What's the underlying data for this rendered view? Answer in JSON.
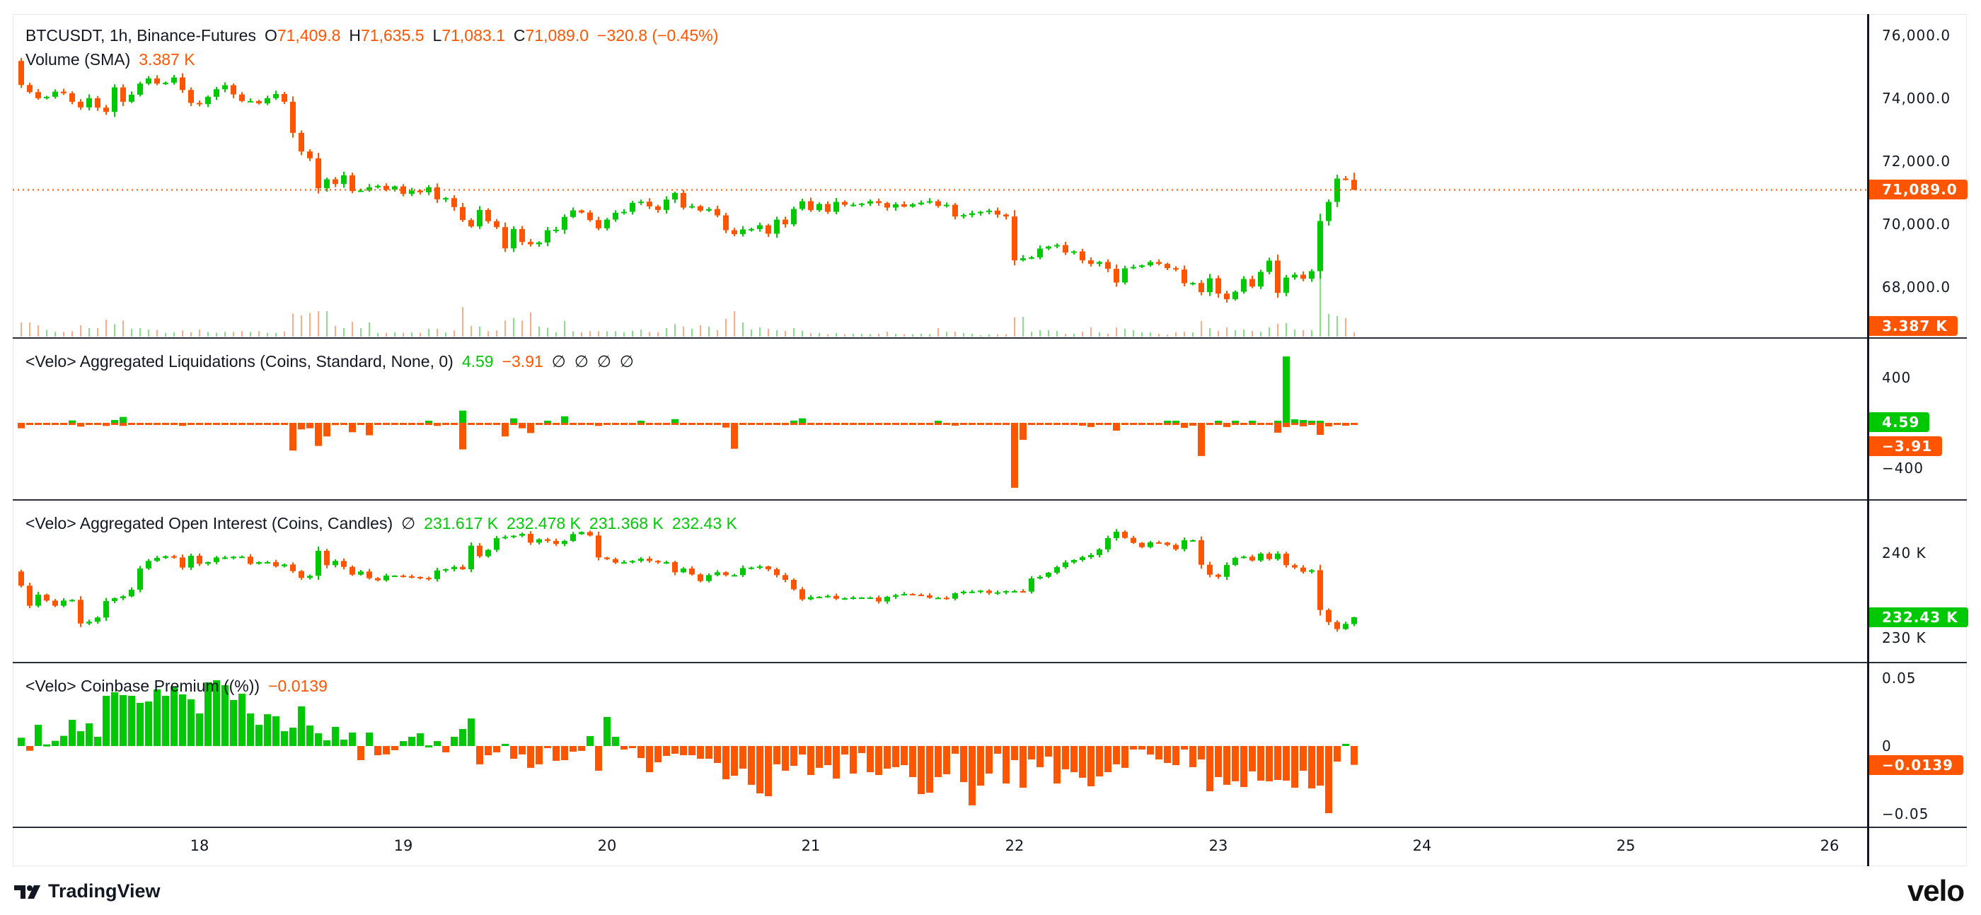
{
  "header": {
    "symbol": "BTCUSDT, 1h, Binance-Futures",
    "o_label": "O",
    "o": "71,409.8",
    "h_label": "H",
    "h": "71,635.5",
    "l_label": "L",
    "l": "71,083.1",
    "c_label": "C",
    "c": "71,089.0",
    "change": "−320.8 (−0.45%)"
  },
  "volume_legend": {
    "name": "Volume (SMA)",
    "value": "3.387 K"
  },
  "liq_legend": {
    "name": "<Velo> Aggregated Liquidations (Coins, Standard, None, 0)",
    "long": "4.59",
    "short": "−3.91",
    "extra": [
      "∅",
      "∅",
      "∅",
      "∅"
    ]
  },
  "oi_legend": {
    "name": "<Velo> Aggregated Open Interest (Coins, Candles)",
    "na": "∅",
    "values": [
      "231.617 K",
      "232.478 K",
      "231.368 K",
      "232.43 K"
    ]
  },
  "premium_legend": {
    "name": "<Velo> Coinbase Premium ((%))",
    "value": "−0.0139"
  },
  "last_labels": {
    "price": "71,089.0",
    "volume": "3.387 K",
    "liq_long": "4.59",
    "liq_short": "−3.91",
    "oi": "232.43 K",
    "premium": "−0.0139"
  },
  "time_labels": [
    "18",
    "19",
    "20",
    "21",
    "22",
    "23",
    "24",
    "25",
    "26"
  ],
  "branding": {
    "tradingview": "TradingView",
    "velo": "velo"
  },
  "colors": {
    "up": "#00c805",
    "down": "#ff5500",
    "volume_up": "#86e08a",
    "volume_down": "#ffab85",
    "axis_text": "#131722",
    "separator": "#2a2e39"
  },
  "chart_data": [
    {
      "type": "candlestick",
      "interval": "1h",
      "ylim": [
        67000,
        76500
      ],
      "yticks": [
        {
          "value": 76000,
          "label": "76,000.0"
        },
        {
          "value": 74000,
          "label": "74,000.0"
        },
        {
          "value": 72000,
          "label": "72,000.0"
        },
        {
          "value": 70000,
          "label": "70,000.0"
        },
        {
          "value": 68000,
          "label": "68,000.0"
        }
      ],
      "first_open": 75186,
      "last_candle": {
        "open": 71409.8,
        "high": 71635.5,
        "low": 71083.1,
        "close": 71089.0
      },
      "last_price_line": 71089.0,
      "close": [
        74422,
        74197,
        74003,
        74048,
        74212,
        74160,
        73890,
        73710,
        74003,
        73703,
        73568,
        74347,
        73890,
        74115,
        74467,
        74632,
        74467,
        74497,
        74662,
        74265,
        73853,
        73815,
        74048,
        74287,
        74415,
        74122,
        73913,
        73913,
        73838,
        74003,
        74137,
        73890,
        72902,
        72310,
        72093,
        71141,
        71426,
        71276,
        71553,
        71052,
        71067,
        71171,
        71216,
        71096,
        71201,
        70962,
        71067,
        71014,
        71171,
        70789,
        70827,
        70542,
        70130,
        69928,
        70452,
        70093,
        69906,
        69231,
        69846,
        69434,
        69359,
        69419,
        69808,
        69823,
        70228,
        70437,
        70370,
        70130,
        69868,
        70145,
        70362,
        70392,
        70677,
        70714,
        70565,
        70452,
        70782,
        70992,
        70527,
        70572,
        70430,
        70480,
        70280,
        69808,
        69681,
        69831,
        69846,
        69965,
        69696,
        70145,
        69995,
        70482,
        70729,
        70445,
        70640,
        70392,
        70707,
        70617,
        70617,
        70655,
        70729,
        70670,
        70527,
        70632,
        70557,
        70632,
        70685,
        70729,
        70580,
        70617,
        70243,
        70288,
        70347,
        70392,
        70430,
        70303,
        70243,
        68849,
        68917,
        68947,
        69224,
        69291,
        69336,
        69097,
        69134,
        68849,
        68737,
        68797,
        68580,
        68145,
        68595,
        68640,
        68692,
        68797,
        68737,
        68602,
        68557,
        68123,
        68130,
        67838,
        68280,
        67793,
        67614,
        67853,
        68258,
        68018,
        68483,
        68842,
        67816,
        68303,
        68393,
        68265,
        68505,
        70100,
        70707,
        71449,
        71410,
        71089.0
      ]
    },
    {
      "type": "bar",
      "name": "Volume (SMA)",
      "unit": "K",
      "values": [
        11.3,
        11.3,
        9.0,
        5.3,
        3.8,
        3.8,
        4.3,
        9.0,
        6.8,
        6.8,
        13.5,
        9.8,
        12.8,
        6.2,
        6.8,
        5.6,
        5.3,
        3.0,
        3.4,
        4.9,
        3.4,
        5.6,
        3.8,
        3.0,
        3.8,
        3.8,
        4.3,
        3.8,
        4.3,
        3.0,
        3.0,
        4.1,
        18.4,
        16.9,
        18.8,
        20.3,
        20.3,
        8.6,
        6.8,
        11.8,
        6.8,
        11.3,
        2.8,
        3.0,
        3.4,
        3.0,
        3.4,
        3.0,
        6.2,
        6.2,
        3.4,
        4.9,
        23.5,
        8.6,
        8.1,
        4.3,
        4.9,
        12.8,
        14.7,
        12.8,
        19.4,
        8.1,
        7.1,
        3.4,
        12.4,
        4.3,
        3.4,
        4.3,
        4.3,
        4.3,
        4.3,
        3.4,
        4.7,
        5.6,
        3.8,
        3.4,
        6.8,
        9.8,
        8.1,
        6.2,
        9.0,
        8.0,
        5.1,
        14.1,
        20.3,
        11.3,
        5.6,
        7.3,
        6.2,
        5.1,
        4.5,
        6.8,
        4.5,
        2.8,
        2.8,
        1.9,
        2.8,
        1.9,
        2.3,
        2.3,
        1.9,
        2.3,
        3.9,
        2.3,
        1.9,
        1.9,
        2.3,
        1.9,
        6.8,
        3.9,
        3.9,
        2.8,
        2.3,
        1.1,
        1.9,
        1.9,
        1.9,
        15.4,
        15.8,
        3.9,
        5.1,
        5.1,
        4.5,
        2.3,
        2.3,
        3.9,
        7.3,
        3.4,
        2.3,
        7.3,
        6.2,
        5.1,
        3.4,
        3.4,
        2.3,
        1.5,
        3.4,
        3.9,
        3.4,
        12.4,
        6.8,
        4.5,
        7.3,
        5.1,
        5.6,
        4.5,
        3.9,
        7.3,
        10.2,
        10.7,
        5.6,
        5.1,
        5.1,
        51.5,
        18.0,
        16.4,
        14.7,
        3.387
      ]
    },
    {
      "type": "bar",
      "name": "<Velo> Aggregated Liquidations (Coins, Standard, None, 0)",
      "ylim": [
        -560,
        580
      ],
      "yticks": [
        {
          "value": 400,
          "label": "400"
        },
        {
          "value": -400,
          "label": "−400"
        }
      ],
      "longs": [
        0,
        0,
        0,
        0,
        0,
        0,
        21,
        0,
        0,
        0,
        0,
        25,
        52,
        0,
        0,
        0,
        0,
        0,
        0,
        0,
        0,
        0,
        0,
        0,
        0,
        0,
        0,
        0,
        0,
        0,
        0,
        0,
        0,
        0,
        0,
        0,
        0,
        0,
        0,
        0,
        0,
        0,
        0,
        0,
        0,
        0,
        0,
        0,
        8,
        0,
        0,
        0,
        108,
        0,
        0,
        0,
        0,
        0,
        40,
        0,
        0,
        0,
        12,
        0,
        58,
        0,
        0,
        0,
        0,
        0,
        0,
        0,
        0,
        8,
        0,
        0,
        0,
        33,
        0,
        0,
        0,
        0,
        0,
        0,
        0,
        0,
        0,
        0,
        0,
        0,
        0,
        20,
        40,
        0,
        0,
        0,
        0,
        0,
        0,
        0,
        0,
        0,
        0,
        0,
        0,
        0,
        0,
        0,
        6,
        0,
        0,
        0,
        0,
        0,
        0,
        0,
        0,
        0,
        0,
        0,
        0,
        0,
        0,
        0,
        0,
        0,
        0,
        0,
        0,
        0,
        0,
        0,
        0,
        0,
        0,
        6,
        12,
        0,
        0,
        0,
        0,
        6,
        0,
        6,
        0,
        12,
        0,
        0,
        6,
        587,
        31,
        25,
        6,
        4.59
      ],
      "shorts": [
        -48,
        -4,
        -4,
        -4,
        -4,
        -4,
        -4,
        -33,
        -4,
        -4,
        -27,
        -4,
        -27,
        -4,
        -4,
        -4,
        -4,
        -4,
        -4,
        -27,
        -4,
        -4,
        -4,
        -4,
        -4,
        -4,
        -4,
        -4,
        -4,
        -4,
        -4,
        -4,
        -245,
        -58,
        -48,
        -204,
        -120,
        -20,
        -4,
        -83,
        -4,
        -110,
        -4,
        -4,
        -4,
        -4,
        -4,
        -4,
        -4,
        -27,
        -4,
        -4,
        -235,
        -4,
        -4,
        -4,
        -4,
        -120,
        -4,
        -48,
        -90,
        -4,
        -4,
        -4,
        -4,
        -4,
        -4,
        -4,
        -27,
        -4,
        -4,
        -4,
        -4,
        -4,
        -4,
        -4,
        -4,
        -4,
        -4,
        -4,
        -4,
        -4,
        -4,
        -42,
        -229,
        -4,
        -4,
        -4,
        -4,
        -4,
        -20,
        -4,
        -4,
        -4,
        -4,
        -4,
        -4,
        -4,
        -4,
        -4,
        -4,
        -4,
        -4,
        -4,
        -4,
        -4,
        -4,
        -4,
        -4,
        -4,
        -25,
        -4,
        -4,
        -4,
        -4,
        -4,
        -4,
        -574,
        -150,
        -4,
        -4,
        -4,
        -4,
        -4,
        -4,
        -25,
        -37,
        -4,
        -4,
        -69,
        -4,
        -4,
        -4,
        -4,
        -4,
        -4,
        -4,
        -44,
        -25,
        -293,
        -4,
        -4,
        -37,
        -4,
        -4,
        -4,
        -4,
        -4,
        -87,
        -37,
        -4,
        -31,
        -4,
        -106,
        -31,
        -19,
        -25,
        -3.91
      ]
    },
    {
      "type": "candlestick",
      "name": "<Velo> Aggregated Open Interest (Coins, Candles)",
      "unit": "K",
      "yticks": [
        {
          "value": 240,
          "label": "240 K"
        },
        {
          "value": 230,
          "label": "230 K"
        }
      ],
      "first_open": 237.81,
      "last_candle": {
        "open": 231.617,
        "high": 232.478,
        "low": 231.368,
        "close": 232.43
      },
      "close": [
        236.14,
        233.78,
        235.08,
        234.39,
        233.78,
        234.39,
        234.47,
        231.69,
        231.89,
        232.39,
        234.33,
        234.67,
        234.89,
        235.67,
        238.17,
        239.06,
        239.42,
        239.61,
        239.47,
        238.28,
        239.67,
        238.72,
        238.92,
        239.47,
        239.47,
        239.56,
        239.56,
        238.72,
        238.92,
        238.92,
        238.44,
        238.64,
        237.86,
        237.06,
        237.31,
        240.25,
        238.56,
        239.06,
        238.36,
        237.44,
        237.81,
        237.03,
        236.78,
        237.33,
        237.33,
        237.25,
        237.17,
        237.06,
        236.92,
        237.94,
        238.08,
        238.36,
        238.08,
        240.86,
        239.61,
        240.36,
        241.75,
        241.89,
        242.03,
        242.25,
        241.22,
        241.61,
        241.42,
        241.06,
        241.42,
        242.22,
        242.47,
        242.06,
        239.47,
        239.28,
        238.86,
        238.92,
        239.06,
        239.33,
        239.06,
        238.92,
        238.92,
        237.72,
        238.17,
        237.47,
        236.69,
        237.39,
        237.72,
        237.39,
        237.39,
        238.22,
        238.28,
        238.42,
        238.08,
        237.39,
        236.83,
        235.72,
        234.53,
        234.8,
        234.83,
        234.94,
        234.61,
        234.67,
        234.75,
        234.75,
        234.75,
        234.28,
        234.83,
        235.03,
        235.17,
        235.08,
        235.0,
        234.72,
        234.72,
        234.61,
        235.25,
        235.44,
        235.44,
        235.56,
        235.28,
        235.36,
        235.5,
        235.5,
        235.44,
        237.0,
        237.19,
        237.67,
        238.33,
        238.89,
        239.17,
        239.5,
        239.75,
        240.42,
        241.75,
        242.5,
        241.78,
        241.19,
        240.69,
        241.25,
        241.22,
        240.94,
        240.44,
        241.5,
        241.5,
        238.61,
        237.44,
        237.19,
        238.58,
        239.42,
        239.56,
        239.11,
        239.92,
        239.28,
        239.92,
        238.56,
        238.28,
        237.78,
        237.97,
        233.28,
        231.86,
        231.03,
        231.64,
        232.43
      ]
    },
    {
      "type": "bar",
      "name": "<Velo> Coinbase Premium ((%))",
      "yticks": [
        {
          "value": 0.05,
          "label": "0.05"
        },
        {
          "value": 0,
          "label": "0"
        },
        {
          "value": -0.05,
          "label": "−0.05"
        }
      ],
      "values": [
        0.0061,
        -0.0035,
        0.0156,
        0.0012,
        0.0038,
        0.0075,
        0.0193,
        0.0109,
        0.0167,
        0.0068,
        0.037,
        0.0396,
        0.0375,
        0.037,
        0.0318,
        0.0328,
        0.0417,
        0.037,
        0.0437,
        0.038,
        0.0344,
        0.024,
        0.0469,
        0.0484,
        0.0448,
        0.0339,
        0.0385,
        0.024,
        0.0156,
        0.0234,
        0.0219,
        0.0109,
        0.0135,
        0.0292,
        0.0151,
        0.0094,
        0.0042,
        0.0141,
        0.0047,
        0.0099,
        -0.0104,
        0.0099,
        -0.0068,
        -0.0062,
        -0.0031,
        0.0036,
        0.0068,
        0.0094,
        0.0005,
        0.0036,
        -0.0047,
        0.0068,
        0.0125,
        0.0203,
        -0.0135,
        -0.0068,
        -0.0047,
        0.0016,
        -0.0094,
        -0.0062,
        -0.0161,
        -0.0135,
        -0.0016,
        -0.0109,
        -0.0104,
        -0.0042,
        -0.0036,
        0.0073,
        -0.0182,
        0.0214,
        0.0068,
        -0.0026,
        -0.001,
        -0.0089,
        -0.0193,
        -0.012,
        -0.0073,
        -0.0057,
        -0.0068,
        -0.0068,
        -0.0094,
        -0.0094,
        -0.0125,
        -0.0245,
        -0.0219,
        -0.0167,
        -0.0286,
        -0.0349,
        -0.037,
        -0.0135,
        -0.0182,
        -0.0146,
        -0.0063,
        -0.0214,
        -0.0161,
        -0.0141,
        -0.024,
        -0.0063,
        -0.0203,
        -0.0052,
        -0.0193,
        -0.0214,
        -0.0167,
        -0.0156,
        -0.0141,
        -0.0229,
        -0.0354,
        -0.0344,
        -0.0229,
        -0.0208,
        -0.0057,
        -0.0266,
        -0.0437,
        -0.0292,
        -0.0203,
        -0.0057,
        -0.0276,
        -0.0104,
        -0.0307,
        -0.0099,
        -0.0156,
        -0.0078,
        -0.0276,
        -0.0172,
        -0.0193,
        -0.0234,
        -0.0297,
        -0.0224,
        -0.0193,
        -0.0135,
        -0.0161,
        -0.0026,
        -0.0026,
        -0.0063,
        -0.0099,
        -0.0125,
        -0.0141,
        -0.0026,
        -0.0156,
        -0.0099,
        -0.0333,
        -0.0229,
        -0.0286,
        -0.026,
        -0.0302,
        -0.0187,
        -0.0255,
        -0.026,
        -0.025,
        -0.0255,
        -0.0307,
        -0.0182,
        -0.0312,
        -0.0292,
        -0.0495,
        -0.0115,
        0.0016,
        -0.0139
      ]
    }
  ]
}
